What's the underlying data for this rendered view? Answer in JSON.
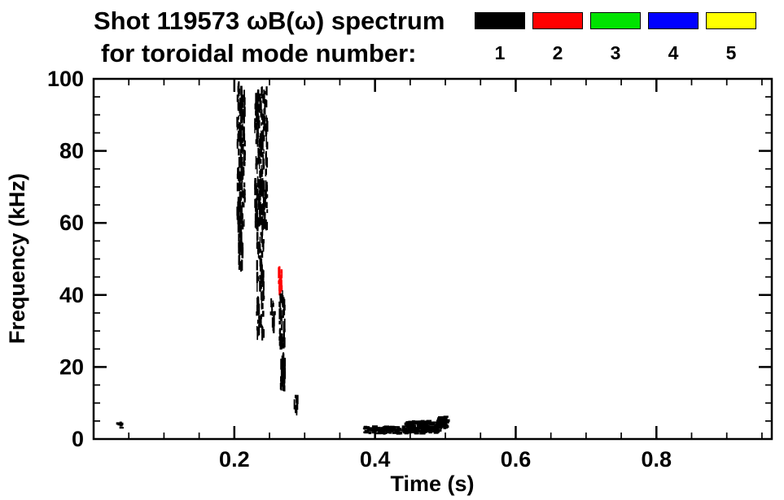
{
  "header": {
    "title_line1": "Shot 119573 ωB(ω) spectrum",
    "title_line2": "for toroidal mode number:"
  },
  "chart_data": {
    "type": "scatter",
    "title": "Shot 119573 ωB(ω) spectrum",
    "subtitle": "for toroidal mode number:",
    "xlabel": "Time (s)",
    "ylabel": "Frequency (kHz)",
    "xlim": [
      0,
      0.964
    ],
    "ylim": [
      0,
      100
    ],
    "xticks": [
      0.2,
      0.4,
      0.6,
      0.8
    ],
    "xtick_labels": [
      "0.2",
      "0.4",
      "0.6",
      "0.8"
    ],
    "yticks": [
      0,
      20,
      40,
      60,
      80,
      100
    ],
    "ytick_labels": [
      "0",
      "20",
      "40",
      "60",
      "80",
      "100"
    ],
    "x_minor_step": 0.05,
    "y_minor_step": 5,
    "grid": false,
    "legend_position": "top-right",
    "legend": [
      {
        "label": "1",
        "color": "#000000"
      },
      {
        "label": "2",
        "color": "#ff0000"
      },
      {
        "label": "3",
        "color": "#00e300"
      },
      {
        "label": "4",
        "color": "#0000ff"
      },
      {
        "label": "5",
        "color": "#ffff00"
      }
    ],
    "clusters": [
      {
        "mode": 1,
        "color": "#000000",
        "t": [
          0.033,
          0.041
        ],
        "f": [
          3.0,
          5.5
        ],
        "density": 6,
        "dash": "h"
      },
      {
        "mode": 1,
        "color": "#000000",
        "t": [
          0.204,
          0.215
        ],
        "f": [
          60,
          98
        ],
        "density": 170,
        "dash": "v"
      },
      {
        "mode": 1,
        "color": "#000000",
        "t": [
          0.206,
          0.212
        ],
        "f": [
          47,
          61
        ],
        "density": 45,
        "dash": "v"
      },
      {
        "mode": 1,
        "color": "#000000",
        "t": [
          0.229,
          0.247
        ],
        "f": [
          58,
          97
        ],
        "density": 230,
        "dash": "v"
      },
      {
        "mode": 1,
        "color": "#000000",
        "t": [
          0.232,
          0.242
        ],
        "f": [
          28,
          58
        ],
        "density": 100,
        "dash": "v"
      },
      {
        "mode": 1,
        "color": "#000000",
        "t": [
          0.252,
          0.258
        ],
        "f": [
          30,
          38
        ],
        "density": 12,
        "dash": "v"
      },
      {
        "mode": 2,
        "color": "#ff0000",
        "t": [
          0.263,
          0.268
        ],
        "f": [
          41,
          48
        ],
        "density": 28,
        "dash": "v"
      },
      {
        "mode": 1,
        "color": "#000000",
        "t": [
          0.264,
          0.272
        ],
        "f": [
          25,
          40
        ],
        "density": 55,
        "dash": "v"
      },
      {
        "mode": 1,
        "color": "#000000",
        "t": [
          0.266,
          0.272
        ],
        "f": [
          14,
          24
        ],
        "density": 35,
        "dash": "v"
      },
      {
        "mode": 1,
        "color": "#000000",
        "t": [
          0.285,
          0.291
        ],
        "f": [
          7,
          12
        ],
        "density": 9,
        "dash": "v"
      },
      {
        "mode": 1,
        "color": "#000000",
        "t": [
          0.385,
          0.445
        ],
        "f": [
          1.5,
          3.5
        ],
        "density": 90,
        "dash": "h"
      },
      {
        "mode": 1,
        "color": "#000000",
        "t": [
          0.445,
          0.492
        ],
        "f": [
          1.5,
          5.0
        ],
        "density": 160,
        "dash": "h"
      },
      {
        "mode": 1,
        "color": "#000000",
        "t": [
          0.49,
          0.503
        ],
        "f": [
          3.0,
          6.5
        ],
        "density": 45,
        "dash": "h"
      }
    ]
  }
}
